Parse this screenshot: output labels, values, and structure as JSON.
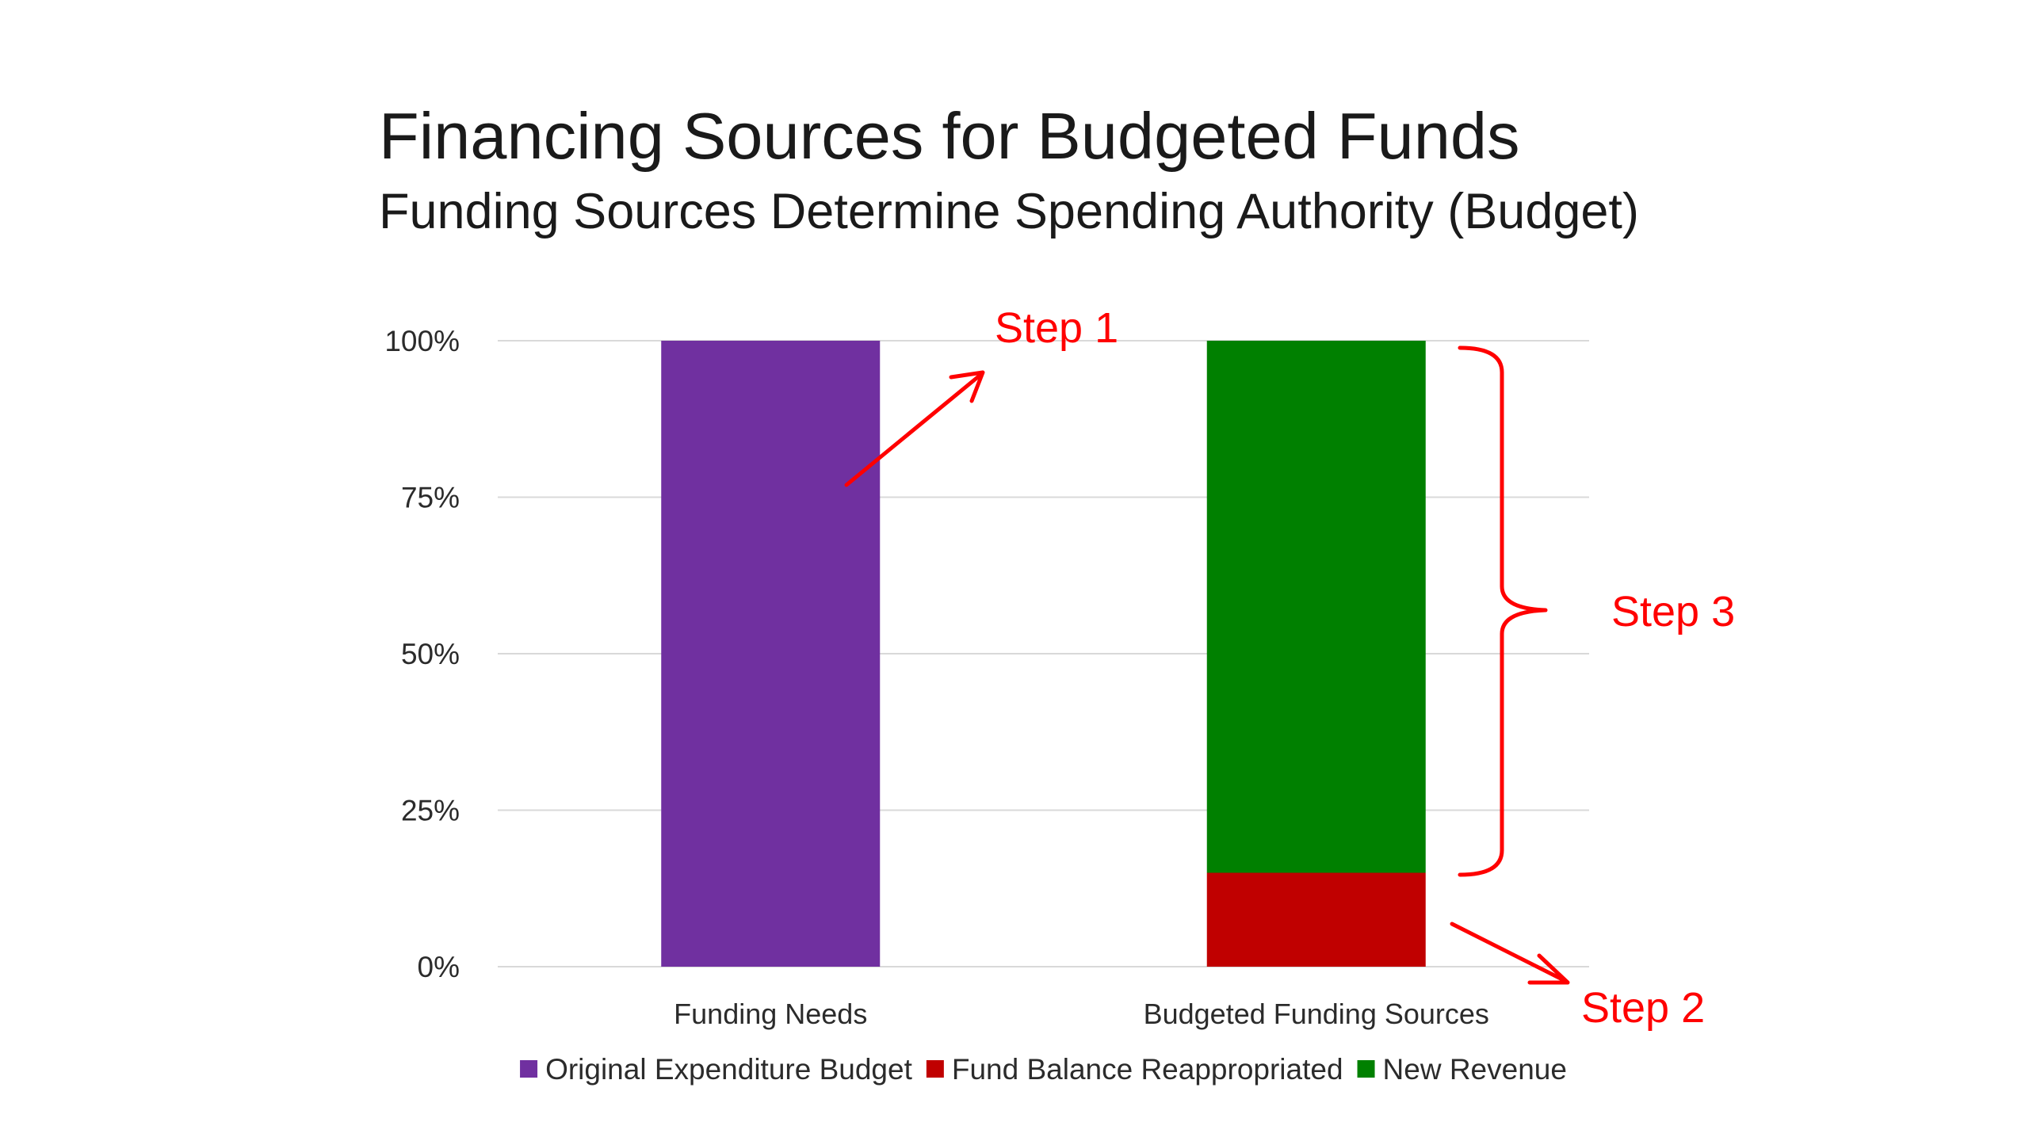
{
  "chart_data": {
    "type": "bar",
    "stacked": true,
    "title": "Financing Sources for Budgeted Funds",
    "subtitle": "Funding Sources Determine Spending Authority (Budget)",
    "categories": [
      "Funding Needs",
      "Budgeted Funding Sources"
    ],
    "series": [
      {
        "name": "Original Expenditure Budget",
        "color": "#7030a0",
        "values": [
          100,
          0
        ]
      },
      {
        "name": "Fund Balance Reappropriated",
        "color": "#c00000",
        "values": [
          0,
          15
        ]
      },
      {
        "name": "New Revenue",
        "color": "#008000",
        "values": [
          0,
          85
        ]
      }
    ],
    "ylim": [
      0,
      100
    ],
    "yticks": [
      {
        "value": 0,
        "label": "0%"
      },
      {
        "value": 25,
        "label": "25%"
      },
      {
        "value": 50,
        "label": "50%"
      },
      {
        "value": 75,
        "label": "75%"
      },
      {
        "value": 100,
        "label": "100%"
      }
    ],
    "grid": true,
    "legend_position": "bottom",
    "annotations": [
      {
        "label": "Step 1",
        "color": "#ff0000"
      },
      {
        "label": "Step 2",
        "color": "#ff0000"
      },
      {
        "label": "Step 3",
        "color": "#ff0000"
      }
    ]
  }
}
